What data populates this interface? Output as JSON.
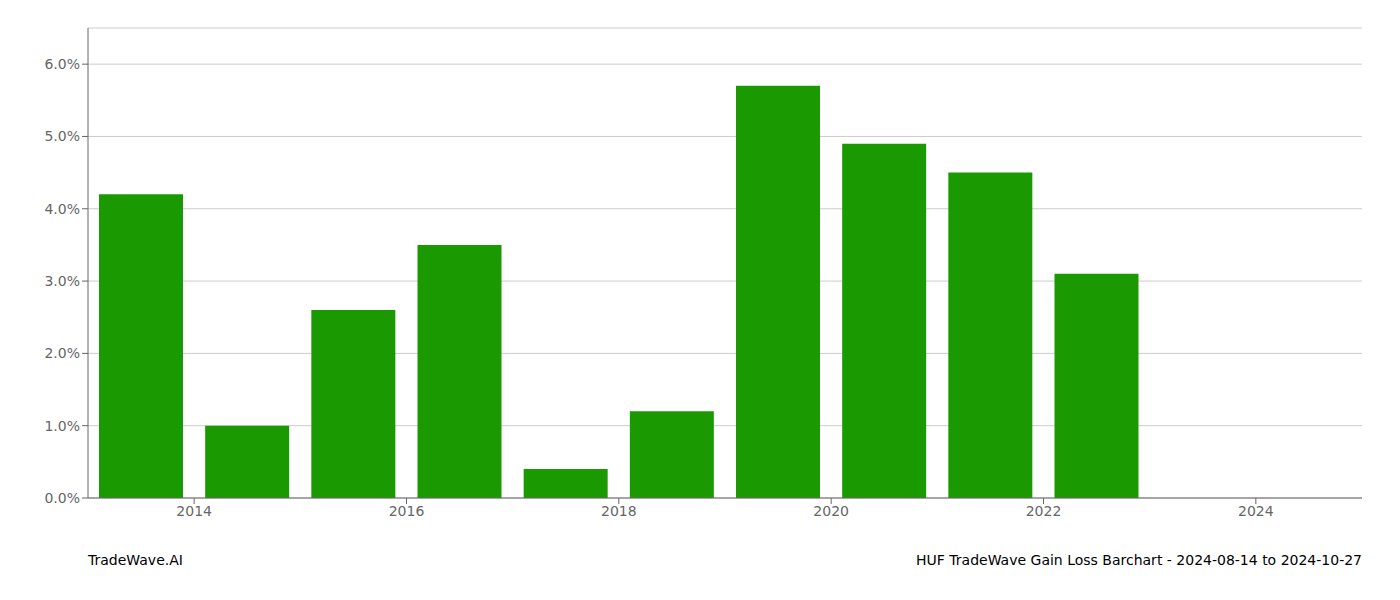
{
  "chart_data": {
    "type": "bar",
    "title": "HUF TradeWave Gain Loss Barchart - 2024-08-14 to 2024-10-27",
    "annotations": [
      "TradeWave.AI"
    ],
    "x": [
      2013.5,
      2014.5,
      2015.5,
      2016.5,
      2017.5,
      2018.5,
      2019.5,
      2020.5,
      2021.5,
      2022.5
    ],
    "values": [
      0.042,
      0.01,
      0.026,
      0.035,
      0.004,
      0.012,
      0.057,
      0.049,
      0.045,
      0.031
    ],
    "color": "#1a9a00",
    "xlim": [
      2013.0,
      2025.0
    ],
    "xticks": [
      2014,
      2016,
      2018,
      2020,
      2022,
      2024
    ],
    "ylim": [
      0.0,
      0.065
    ],
    "yticks": [
      {
        "value": 0.0,
        "label": "0.0%"
      },
      {
        "value": 0.01,
        "label": "1.0%"
      },
      {
        "value": 0.02,
        "label": "2.0%"
      },
      {
        "value": 0.03,
        "label": "3.0%"
      },
      {
        "value": 0.04,
        "label": "4.0%"
      },
      {
        "value": 0.05,
        "label": "5.0%"
      },
      {
        "value": 0.06,
        "label": "6.0%"
      }
    ],
    "grid": true
  }
}
